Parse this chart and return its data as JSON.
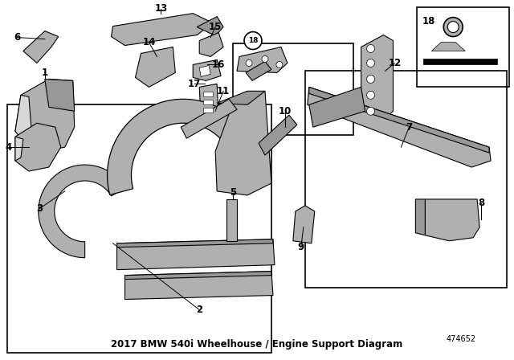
{
  "title": "2017 BMW 540i Wheelhouse / Engine Support Diagram",
  "bg_color": "#ffffff",
  "part_number": "474652",
  "fig_width": 6.4,
  "fig_height": 4.48,
  "gray1": "#c8c8c8",
  "gray2": "#b0b0b0",
  "gray3": "#989898",
  "gray4": "#d8d8d8",
  "label_fontsize": 8.5,
  "title_fontsize": 8.5
}
